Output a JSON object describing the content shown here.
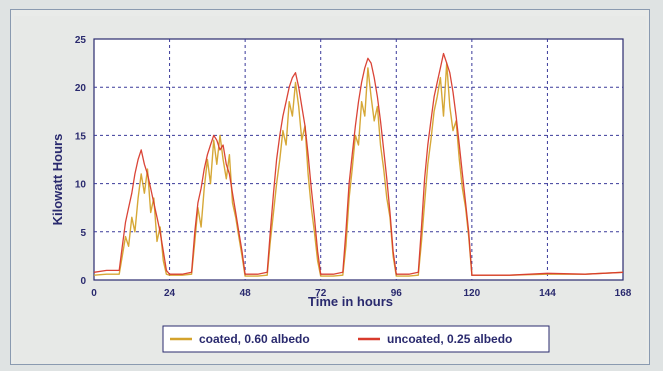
{
  "chart_data": {
    "type": "line",
    "xlabel": "Time in hours",
    "ylabel": "Kilowatt Hours",
    "xlim": [
      0,
      168
    ],
    "ylim": [
      0,
      25
    ],
    "xticks": [
      0,
      24,
      48,
      72,
      96,
      120,
      144,
      168
    ],
    "yticks": [
      0,
      5,
      10,
      15,
      20,
      25
    ],
    "grid": true,
    "legend_placement": "bottom-center",
    "series": [
      {
        "name": "coated, 0.60 albedo",
        "color": "#d4a32c",
        "x": [
          0,
          4,
          8,
          9,
          10,
          11,
          12,
          13,
          14,
          15,
          16,
          17,
          18,
          19,
          20,
          21,
          22,
          23,
          24,
          28,
          31,
          32,
          33,
          34,
          35,
          36,
          37,
          38,
          39,
          40,
          41,
          42,
          43,
          44,
          45,
          46,
          47,
          48,
          52,
          55,
          56,
          57,
          58,
          59,
          60,
          61,
          62,
          63,
          64,
          65,
          66,
          67,
          68,
          69,
          70,
          71,
          72,
          76,
          79,
          80,
          81,
          82,
          83,
          84,
          85,
          86,
          87,
          88,
          89,
          90,
          91,
          92,
          93,
          94,
          95,
          96,
          100,
          103,
          104,
          105,
          106,
          107,
          108,
          109,
          110,
          111,
          112,
          113,
          114,
          115,
          116,
          117,
          118,
          119,
          120,
          132,
          144,
          156,
          168
        ],
        "values": [
          0.5,
          0.6,
          0.6,
          2.5,
          4.5,
          3.5,
          6.5,
          5.0,
          8.5,
          11.0,
          9.0,
          11.5,
          7.0,
          8.5,
          4.0,
          5.5,
          2.0,
          0.6,
          0.5,
          0.5,
          0.6,
          4.0,
          7.5,
          5.5,
          9.5,
          12.5,
          10.0,
          14.5,
          12.0,
          15.0,
          12.5,
          10.5,
          13.0,
          8.0,
          6.5,
          4.5,
          2.5,
          0.4,
          0.4,
          0.5,
          4.0,
          7.0,
          10.0,
          12.5,
          15.5,
          14.0,
          18.5,
          17.0,
          20.5,
          18.0,
          14.5,
          16.0,
          11.0,
          7.5,
          5.0,
          2.0,
          0.4,
          0.4,
          0.5,
          3.5,
          8.5,
          11.5,
          15.0,
          14.0,
          18.5,
          17.0,
          22.0,
          19.0,
          16.5,
          18.0,
          14.0,
          11.5,
          8.5,
          6.5,
          2.5,
          0.4,
          0.4,
          0.5,
          4.0,
          8.0,
          12.0,
          14.5,
          17.5,
          19.0,
          21.0,
          17.0,
          22.5,
          18.0,
          15.5,
          16.5,
          12.5,
          9.5,
          7.5,
          4.5,
          0.5,
          0.5,
          0.6,
          0.6,
          0.8
        ]
      },
      {
        "name": "uncoated, 0.25 albedo",
        "color": "#d83a2c",
        "x": [
          0,
          4,
          8,
          9,
          10,
          11,
          12,
          13,
          14,
          15,
          16,
          17,
          18,
          19,
          20,
          21,
          22,
          23,
          24,
          28,
          31,
          32,
          33,
          34,
          35,
          36,
          37,
          38,
          39,
          40,
          41,
          42,
          43,
          44,
          45,
          46,
          47,
          48,
          52,
          55,
          56,
          57,
          58,
          59,
          60,
          61,
          62,
          63,
          64,
          65,
          66,
          67,
          68,
          69,
          70,
          71,
          72,
          76,
          79,
          80,
          81,
          82,
          83,
          84,
          85,
          86,
          87,
          88,
          89,
          90,
          91,
          92,
          93,
          94,
          95,
          96,
          100,
          103,
          104,
          105,
          106,
          107,
          108,
          109,
          110,
          111,
          112,
          113,
          114,
          115,
          116,
          117,
          118,
          119,
          120,
          132,
          144,
          156,
          168
        ],
        "values": [
          0.8,
          1.0,
          1.0,
          3.5,
          6.0,
          7.5,
          9.0,
          11.0,
          12.5,
          13.5,
          12.0,
          11.0,
          9.5,
          8.0,
          6.5,
          5.0,
          3.0,
          1.0,
          0.6,
          0.6,
          0.8,
          5.0,
          8.0,
          9.5,
          11.5,
          13.0,
          14.0,
          15.0,
          14.5,
          13.5,
          14.0,
          12.0,
          11.0,
          9.0,
          7.0,
          5.0,
          3.0,
          0.6,
          0.6,
          0.8,
          5.0,
          9.0,
          12.5,
          15.0,
          17.0,
          18.5,
          20.0,
          21.0,
          21.5,
          20.0,
          18.0,
          16.0,
          13.0,
          9.5,
          6.5,
          3.0,
          0.6,
          0.6,
          0.8,
          5.0,
          10.0,
          13.0,
          16.0,
          18.5,
          20.5,
          22.0,
          23.0,
          22.5,
          21.0,
          19.0,
          16.5,
          13.5,
          10.5,
          7.0,
          3.0,
          0.6,
          0.6,
          0.8,
          5.5,
          10.5,
          14.0,
          16.5,
          19.0,
          20.5,
          22.0,
          23.5,
          22.5,
          21.5,
          19.5,
          17.0,
          14.0,
          11.0,
          8.0,
          5.0,
          0.5,
          0.5,
          0.7,
          0.6,
          0.8
        ]
      }
    ]
  }
}
